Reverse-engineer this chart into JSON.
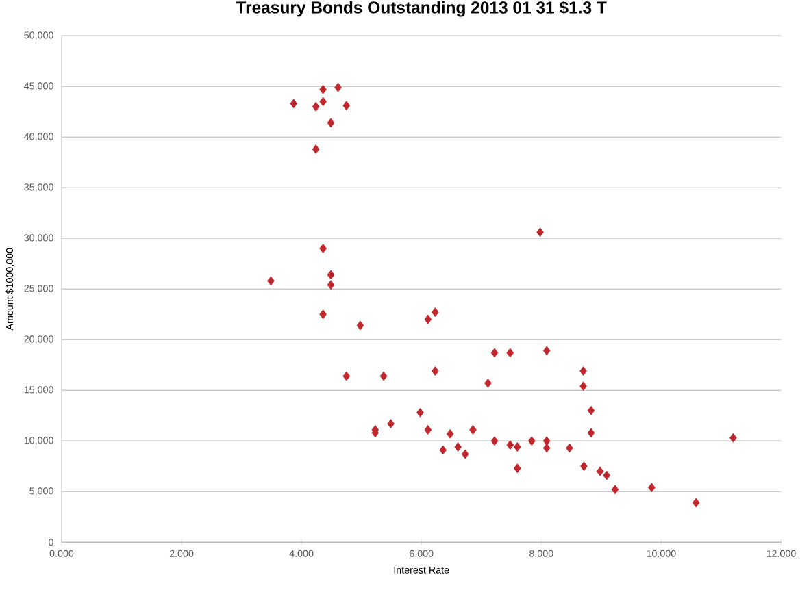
{
  "chart_data": {
    "type": "scatter",
    "title": "Treasury Bonds Outstanding 2013 01 31 $1.3 T",
    "xlabel": "Interest Rate",
    "ylabel": "Amount $1000,000",
    "x": [
      3.87,
      4.36,
      4.61,
      4.24,
      4.36,
      4.75,
      4.49,
      4.24,
      4.36,
      3.49,
      4.49,
      4.49,
      4.36,
      4.98,
      6.11,
      6.23,
      4.75,
      5.37,
      6.23,
      7.22,
      7.48,
      7.11,
      5.98,
      5.23,
      5.23,
      5.49,
      6.11,
      6.48,
      6.86,
      6.36,
      6.61,
      6.73,
      7.22,
      7.48,
      7.6,
      7.6,
      7.98,
      8.09,
      8.7,
      8.7,
      8.83,
      8.83,
      7.84,
      8.09,
      8.09,
      8.47,
      8.71,
      8.98,
      9.09,
      9.23,
      9.84,
      10.58,
      11.2
    ],
    "values": [
      43300,
      44700,
      44900,
      43000,
      43500,
      43100,
      41400,
      38800,
      29000,
      25800,
      26400,
      25400,
      22500,
      21400,
      22000,
      22700,
      16400,
      16400,
      16900,
      18700,
      18700,
      15700,
      12800,
      11100,
      10800,
      11700,
      11100,
      10700,
      11100,
      9100,
      9400,
      8700,
      10000,
      9600,
      9400,
      7300,
      30600,
      18900,
      16900,
      15400,
      13000,
      10800,
      10000,
      10000,
      9300,
      9300,
      7500,
      7000,
      6600,
      5200,
      5400,
      3900,
      10300
    ],
    "color": "#c0272d",
    "marker": "diamond",
    "grid": "y",
    "xlim": [
      0,
      12
    ],
    "ylim": [
      0,
      50000
    ],
    "xticks": [
      {
        "value": 0,
        "label": "0.000"
      },
      {
        "value": 2,
        "label": "2.000"
      },
      {
        "value": 4,
        "label": "4.000"
      },
      {
        "value": 6,
        "label": "6.000"
      },
      {
        "value": 8,
        "label": "8.000"
      },
      {
        "value": 10,
        "label": "10.000"
      },
      {
        "value": 12,
        "label": "12.000"
      }
    ],
    "yticks": [
      0,
      {
        "value": 5000,
        "label": "5,000"
      },
      {
        "value": 10000,
        "label": "10,000"
      },
      {
        "value": 15000,
        "label": "15,000"
      },
      {
        "value": 20000,
        "label": "20,000"
      },
      {
        "value": 25000,
        "label": "25,000"
      },
      {
        "value": 30000,
        "label": "30,000"
      },
      {
        "value": 35000,
        "label": "35,000"
      },
      {
        "value": 40000,
        "label": "40,000"
      },
      {
        "value": 45000,
        "label": "45,000"
      },
      {
        "value": 50000,
        "label": "50,000"
      }
    ]
  }
}
